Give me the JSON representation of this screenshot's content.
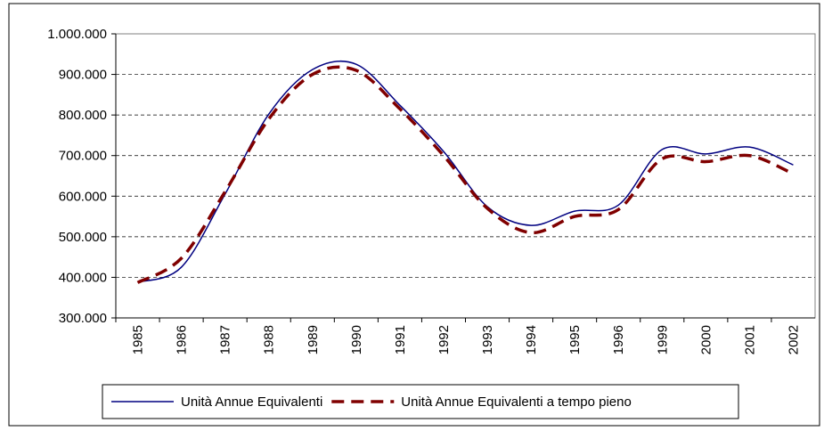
{
  "chart_data": {
    "type": "line",
    "categories": [
      "1985",
      "1986",
      "1987",
      "1988",
      "1989",
      "1990",
      "1991",
      "1992",
      "1993",
      "1994",
      "1995",
      "1996",
      "1999",
      "2000",
      "2001",
      "2002"
    ],
    "series": [
      {
        "name": "Unità Annue Equivalenti",
        "color": "#000080",
        "style": "solid",
        "values": [
          388000,
          425000,
          605000,
          802000,
          912000,
          925000,
          824000,
          710000,
          574000,
          528000,
          563000,
          578000,
          715000,
          704000,
          721000,
          677000
        ]
      },
      {
        "name": "Unità Annue Equivalenti a tempo pieno",
        "color": "#800000",
        "style": "dashed",
        "values": [
          387000,
          447000,
          611000,
          790000,
          900000,
          910000,
          815000,
          700000,
          570000,
          510000,
          550000,
          567000,
          692000,
          685000,
          700000,
          655000
        ]
      }
    ],
    "ylim": [
      300000,
      1000000
    ],
    "yticks": [
      {
        "value": 300000,
        "label": "300.000"
      },
      {
        "value": 400000,
        "label": "400.000"
      },
      {
        "value": 500000,
        "label": "500.000"
      },
      {
        "value": 600000,
        "label": "600.000"
      },
      {
        "value": 700000,
        "label": "700.000"
      },
      {
        "value": 800000,
        "label": "800.000"
      },
      {
        "value": 900000,
        "label": "900.000"
      },
      {
        "value": 1000000,
        "label": "1.000.000"
      }
    ],
    "grid": true,
    "legend": "bottom"
  }
}
